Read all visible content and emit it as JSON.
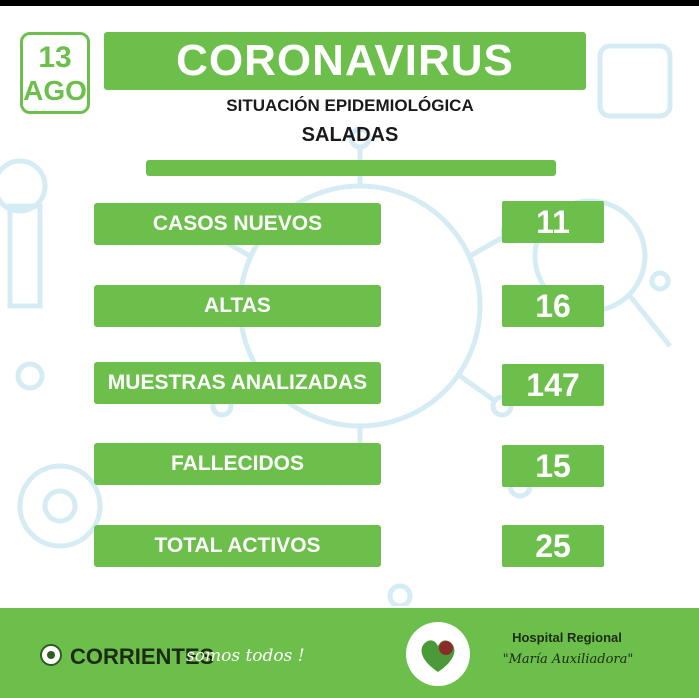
{
  "date": {
    "day": "13",
    "month": "AGO"
  },
  "header": {
    "title": "CORONAVIRUS",
    "subtitle": "SITUACIÓN EPIDEMIOLÓGICA",
    "location": "SALADAS"
  },
  "stats": [
    {
      "label": "CASOS NUEVOS",
      "value": "11"
    },
    {
      "label": "ALTAS",
      "value": "16"
    },
    {
      "label": "MUESTRAS ANALIZADAS",
      "value": "147"
    },
    {
      "label": "FALLECIDOS",
      "value": "15"
    },
    {
      "label": "TOTAL ACTIVOS",
      "value": "25"
    }
  ],
  "footer": {
    "corrientes_name": "CORRIENTES",
    "corrientes_slogan": "somos todos !",
    "hospital_name": "Hospital Regional",
    "hospital_subname": "\"María Auxiliadora\""
  },
  "colors": {
    "accent_green": "#6cbf4a",
    "background_art": "#d6ecf4",
    "text_dark": "#1a1a1a"
  },
  "icons": [
    "coronavirus-icon",
    "magnifier-icon",
    "gear-icon",
    "coat-of-arms-icon",
    "hospital-heart-icon"
  ]
}
